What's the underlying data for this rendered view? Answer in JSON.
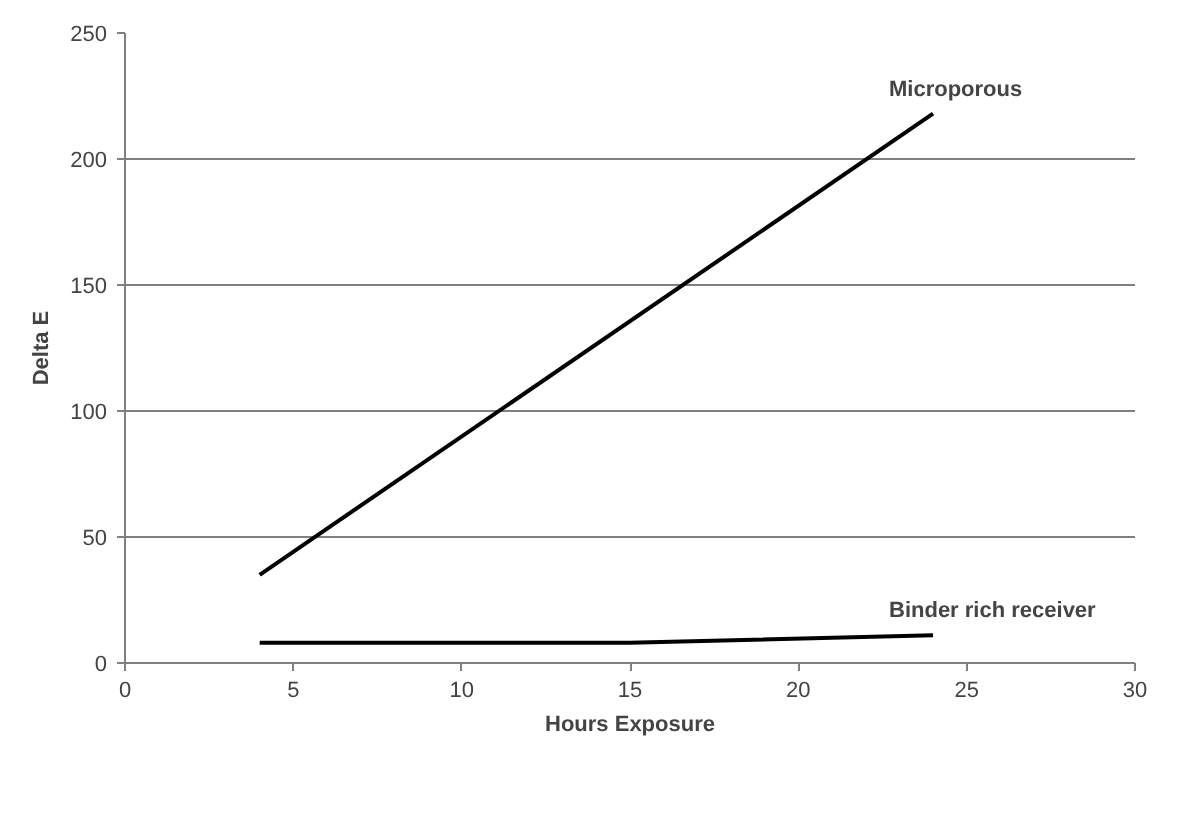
{
  "chart_data": {
    "type": "line",
    "xlabel": "Hours Exposure",
    "ylabel": "Delta E",
    "xlim": [
      0,
      30
    ],
    "xticks": [
      0,
      5,
      10,
      15,
      20,
      25,
      30
    ],
    "ylim": [
      0,
      250
    ],
    "yticks": [
      0,
      50,
      100,
      150,
      200,
      250
    ],
    "grid": "y",
    "marker": "none",
    "line_style": "solid",
    "series": [
      {
        "name": "Microporous",
        "color": "#000000",
        "x": [
          4,
          24
        ],
        "values": [
          35,
          218
        ]
      },
      {
        "name": "Binder rich receiver",
        "color": "#000000",
        "x": [
          4,
          15,
          24
        ],
        "values": [
          8,
          8,
          11
        ]
      }
    ]
  }
}
